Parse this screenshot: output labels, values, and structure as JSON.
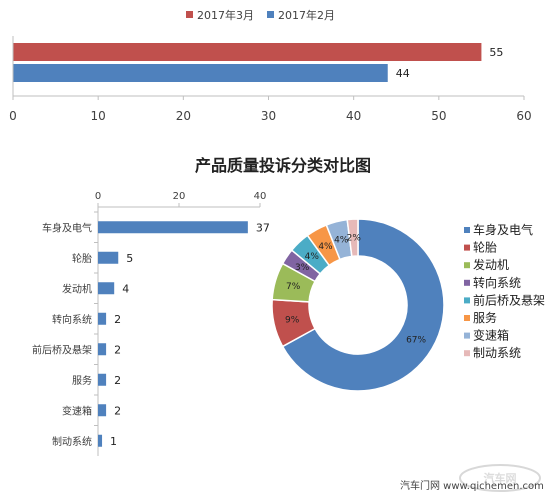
{
  "colors": {
    "march": "#c0504d",
    "february": "#4f81bd",
    "bar": "#4f81bd",
    "axis": "#bfbfbf",
    "slices": [
      "#4f81bd",
      "#c0504d",
      "#9bbb59",
      "#8064a2",
      "#4bacc6",
      "#f79646",
      "#95b3d7",
      "#e6b9b8"
    ]
  },
  "watermark": {
    "text": "汽车门网 www.qichemen.com",
    "logo_text": "汽车网"
  },
  "chart_data": [
    {
      "type": "bar",
      "orientation": "horizontal",
      "categories": [
        ""
      ],
      "series": [
        {
          "name": "2017年3月",
          "values": [
            55
          ]
        },
        {
          "name": "2017年2月",
          "values": [
            44
          ]
        }
      ],
      "xlim": [
        0,
        60
      ],
      "xticks": [
        0,
        10,
        20,
        30,
        40,
        50,
        60
      ],
      "data_labels": [
        "55",
        "44"
      ],
      "legend_position": "top",
      "grid": false
    },
    {
      "type": "bar",
      "orientation": "horizontal",
      "title": "产品质量投诉分类对比图",
      "categories": [
        "车身及电气",
        "轮胎",
        "发动机",
        "转向系统",
        "前后桥及悬架",
        "服务",
        "变速箱",
        "制动系统"
      ],
      "values": [
        37,
        5,
        4,
        2,
        2,
        2,
        2,
        1
      ],
      "xlim": [
        0,
        40
      ],
      "xticks": [
        0,
        20,
        40
      ],
      "axis_position": "top",
      "grid": false
    },
    {
      "type": "pie",
      "donut": true,
      "labels": [
        "车身及电气",
        "轮胎",
        "发动机",
        "转向系统",
        "前后桥及悬架",
        "服务",
        "变速箱",
        "制动系统"
      ],
      "values": [
        67,
        9,
        7,
        3,
        4,
        4,
        4,
        2
      ],
      "slice_labels": [
        "67%",
        "9%",
        "7%",
        "3%",
        "4%",
        "4%",
        "4%",
        "2%"
      ],
      "legend_position": "right"
    }
  ]
}
